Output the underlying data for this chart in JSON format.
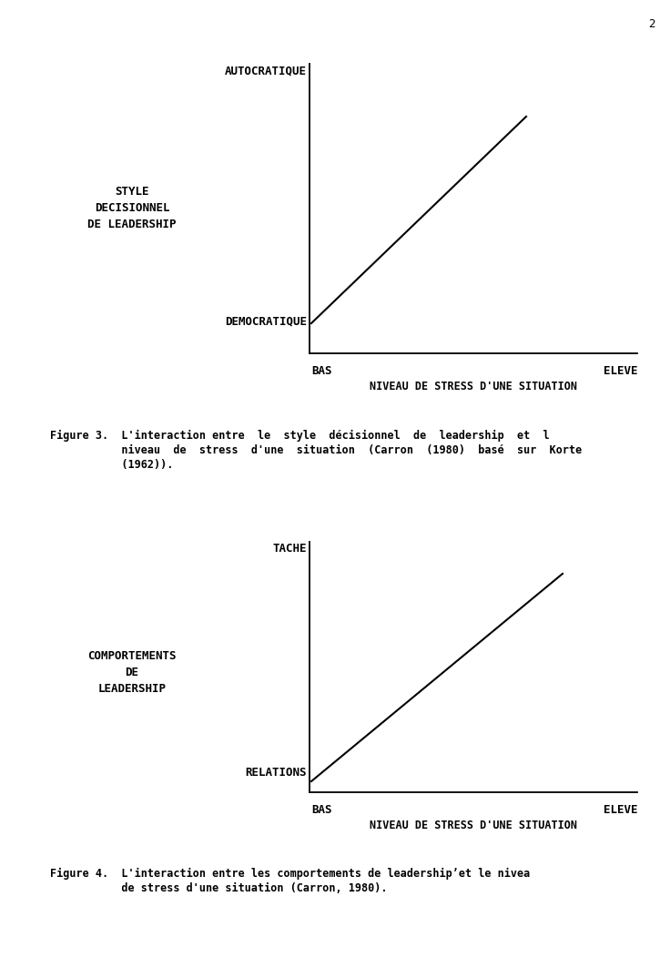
{
  "fig_width": 7.36,
  "fig_height": 10.74,
  "bg_color": "#ffffff",
  "fig1": {
    "y_top_label": "AUTOCRATIQUE",
    "y_bottom_label": "DEMOCRATIQUE",
    "y_left_labels": [
      "STYLE",
      "DECISIONNEL",
      "DE LEADERSHIP"
    ],
    "x_left_label": "BAS",
    "x_right_label": "ELEVE",
    "x_axis_label": "NIVEAU DE STRESS D'UNE SITUATION",
    "caption": [
      "Figure 3.  L'interaction entre  le  style  décisionnel  de  leadership  et  l",
      "           niveau  de  stress  d'une  situation  (Carron  (1980)  basé  sur  Korte",
      "           (1962))."
    ]
  },
  "fig2": {
    "y_top_label": "TACHE",
    "y_bottom_label": "RELATIONS",
    "y_left_labels": [
      "COMPORTEMENTS",
      "DE",
      "LEADERSHIP"
    ],
    "x_left_label": "BAS",
    "x_right_label": "ELEVE",
    "x_axis_label": "NIVEAU DE STRESS D'UNE SITUATION",
    "caption": [
      "Figure 4.  L'interaction entre les comportements de leadership’et le nivea",
      "           de stress d'une situation (Carron, 1980)."
    ]
  },
  "font_family": "monospace",
  "label_fontsize": 9,
  "axis_label_fontsize": 8.5,
  "caption_fontsize": 8.5
}
